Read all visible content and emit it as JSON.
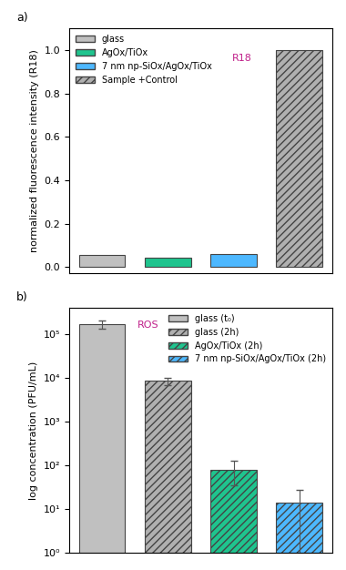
{
  "chart_data": [
    {
      "type": "bar",
      "title": "a)",
      "y_label": "normalized fluorescence intensity (R18)",
      "categories": [
        "glass",
        "AgOx/TiOx",
        "7 nm np-SiOx/AgOx/TiOx",
        "Sample +Control"
      ],
      "values": [
        0.055,
        0.045,
        0.06,
        1.0
      ],
      "colors": [
        "#c0c0c0",
        "#1fc48e",
        "#4db8ff",
        "#b0b0b0"
      ],
      "ylim": [
        -0.03,
        1.1
      ],
      "yticks": [
        0.0,
        0.2,
        0.4,
        0.6,
        0.8,
        1.0
      ],
      "legend": "upper left",
      "tick_labels": "y",
      "annotations": [
        "R18"
      ]
    },
    {
      "type": "bar",
      "title": "b)",
      "y_label": "log concentration (PFU/mL)",
      "categories": [
        "glass (t₀)",
        "glass (2h)",
        "AgOx/TiOx (2h)",
        "7 nm np-SiOx/AgOx/TiOx (2h)"
      ],
      "values": [
        170000,
        8500,
        80,
        14
      ],
      "errors": [
        35000,
        1500,
        45,
        14
      ],
      "colors": [
        "#c0c0c0",
        "#b0b0b0",
        "#1fc48e",
        "#4db8ff"
      ],
      "log": "y",
      "ylim": [
        1,
        400000
      ],
      "yticks": [
        {
          "value": 1,
          "label": "10⁰"
        },
        {
          "value": 10,
          "label": "10¹"
        },
        {
          "value": 100,
          "label": "10²"
        },
        {
          "value": 1000,
          "label": "10³"
        },
        {
          "value": 10000,
          "label": "10⁴"
        },
        {
          "value": 100000,
          "label": "10⁵"
        }
      ],
      "legend": "upper right",
      "tick_labels": "y",
      "annotations": [
        "ROS"
      ]
    }
  ]
}
